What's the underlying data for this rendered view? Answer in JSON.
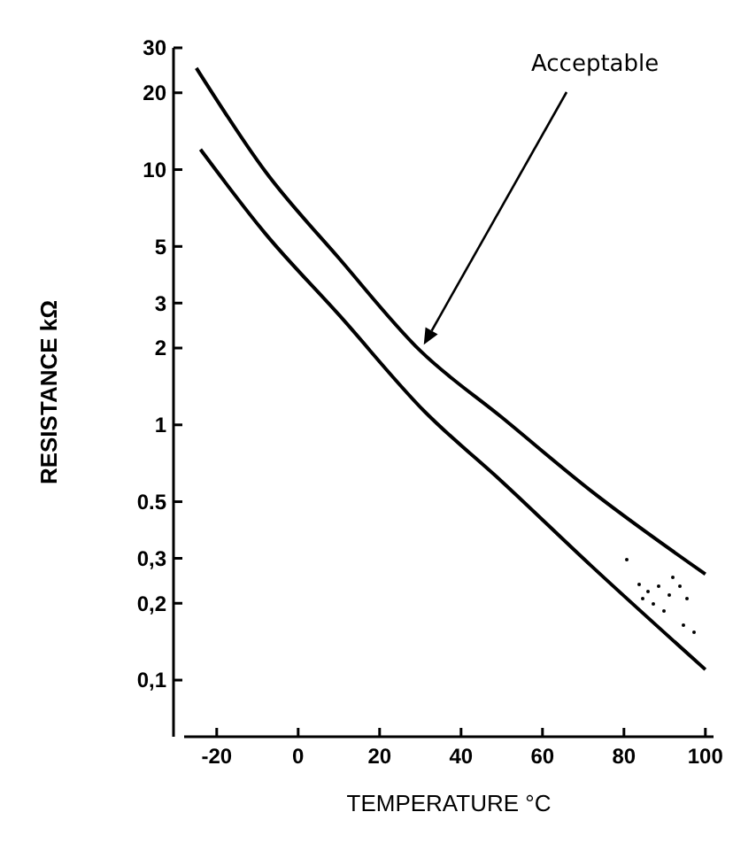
{
  "chart_data": {
    "type": "line",
    "xlabel": "TEMPERATURE °C",
    "ylabel": "RESISTANCE kΩ",
    "x": [
      -25,
      -8,
      10,
      30,
      50,
      72,
      100
    ],
    "series": [
      {
        "color": "#000000",
        "values": [
          25,
          9.8,
          4.5,
          1.95,
          1.07,
          0.55,
          0.26
        ]
      },
      {
        "color": "#000000",
        "x": [
          -24,
          -8,
          10,
          31,
          50,
          72,
          100
        ],
        "values": [
          12,
          5.6,
          2.7,
          1.13,
          0.6,
          0.28,
          0.11
        ]
      }
    ],
    "annotations": [
      "Acceptable"
    ],
    "log": "y",
    "grid": false,
    "marker": "none",
    "line_style": "solid",
    "xlim": [
      -28,
      102
    ],
    "xticks": [
      -20,
      0,
      20,
      40,
      60,
      80,
      100
    ],
    "ylim": [
      0.06,
      30
    ],
    "yticks": [
      {
        "value": 0.1,
        "label": "0,1"
      },
      {
        "value": 0.2,
        "label": "0,2"
      },
      {
        "value": 0.3,
        "label": "0,3"
      },
      0.5,
      1,
      2,
      3,
      5,
      10,
      20,
      30
    ]
  }
}
